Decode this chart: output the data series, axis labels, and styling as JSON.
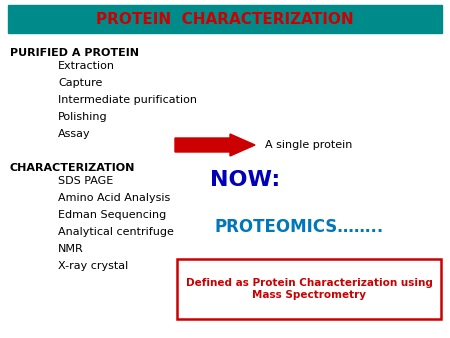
{
  "title": "PROTEIN  CHARACTERIZATION",
  "title_color": "#cc0000",
  "title_bg_color": "#008b8b",
  "bg_color": "#ffffff",
  "purified_header": "PURIFIED A PROTEIN",
  "purified_items": [
    "Extraction",
    "Capture",
    "Intermediate purification",
    "Polishing",
    "Assay"
  ],
  "charact_header": "CHARACTERIZATION",
  "charact_items": [
    "SDS PAGE",
    "Amino Acid Analysis",
    "Edman Sequencing",
    "Analytical centrifuge",
    "NMR",
    "X-ray crystal"
  ],
  "arrow_color": "#cc0000",
  "arrow_label": "A single protein",
  "now_text": "NOW:",
  "now_color": "#0000bb",
  "proteomics_text": "PROTEOMICS……..",
  "proteomics_color": "#0077bb",
  "box_text": "Defined as Protein Characterization using\nMass Spectrometry",
  "box_text_color": "#cc0000",
  "box_border_color": "#cc0000",
  "header_color": "#000000",
  "item_color": "#000000"
}
